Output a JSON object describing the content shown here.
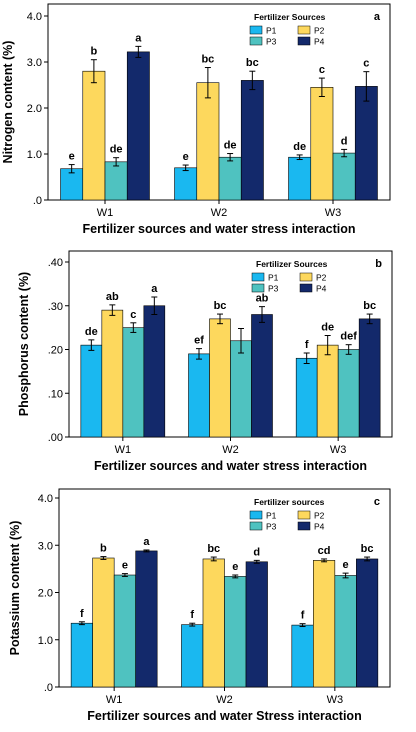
{
  "chart_data": [
    {
      "type": "bar",
      "panel_label": "a",
      "ylabel": "Nitrogen content (%)",
      "xlabel": "Fertilizer sources and water stress interaction",
      "categories": [
        "W1",
        "W2",
        "W3"
      ],
      "ylim": [
        0,
        4.0
      ],
      "yticks": [
        0,
        1.0,
        2.0,
        3.0,
        4.0
      ],
      "ytick_labels": [
        ".0",
        "1.0",
        "2.0",
        "3.0",
        "4.0"
      ],
      "legend_title": "Fertilizer Sources",
      "legend_position": "top-right",
      "series": [
        {
          "name": "P1",
          "color": "#1ab8f0",
          "values": [
            0.68,
            0.7,
            0.93
          ],
          "errors": [
            0.09,
            0.06,
            0.05
          ],
          "letters": [
            "e",
            "e",
            "de"
          ]
        },
        {
          "name": "P2",
          "color": "#fdd85d",
          "values": [
            2.8,
            2.55,
            2.45
          ],
          "errors": [
            0.25,
            0.33,
            0.2
          ],
          "letters": [
            "b",
            "bc",
            "c"
          ]
        },
        {
          "name": "P3",
          "color": "#4fc2c0",
          "values": [
            0.83,
            0.93,
            1.02
          ],
          "errors": [
            0.09,
            0.08,
            0.08
          ],
          "letters": [
            "de",
            "de",
            "d"
          ]
        },
        {
          "name": "P4",
          "color": "#13296b",
          "values": [
            3.22,
            2.6,
            2.47
          ],
          "errors": [
            0.12,
            0.2,
            0.32
          ],
          "letters": [
            "a",
            "bc",
            "c"
          ]
        }
      ]
    },
    {
      "type": "bar",
      "panel_label": "b",
      "ylabel": "Phosphorus content (%)",
      "xlabel": "Fertilizer sources and water stress interaction",
      "categories": [
        "W1",
        "W2",
        "W3"
      ],
      "ylim": [
        0,
        0.4
      ],
      "yticks": [
        0,
        0.1,
        0.2,
        0.3,
        0.4
      ],
      "ytick_labels": [
        ".00",
        ".10",
        ".20",
        ".30",
        ".40"
      ],
      "legend_title": "Fertilizer Sources",
      "legend_position": "top-right",
      "series": [
        {
          "name": "P1",
          "color": "#1ab8f0",
          "values": [
            0.21,
            0.19,
            0.18
          ],
          "errors": [
            0.012,
            0.012,
            0.012
          ],
          "letters": [
            "de",
            "ef",
            "f"
          ]
        },
        {
          "name": "P2",
          "color": "#fdd85d",
          "values": [
            0.29,
            0.27,
            0.21
          ],
          "errors": [
            0.012,
            0.011,
            0.022
          ],
          "letters": [
            "ab",
            "bc",
            "de"
          ]
        },
        {
          "name": "P3",
          "color": "#4fc2c0",
          "values": [
            0.25,
            0.22,
            0.2
          ],
          "errors": [
            0.011,
            0.028,
            0.011
          ],
          "letters": [
            "c",
            "",
            "def"
          ]
        },
        {
          "name": "P4",
          "color": "#13296b",
          "values": [
            0.3,
            0.28,
            0.27
          ],
          "errors": [
            0.02,
            0.018,
            0.011
          ],
          "letters": [
            "a",
            "ab",
            "bc"
          ]
        }
      ]
    },
    {
      "type": "bar",
      "panel_label": "c",
      "ylabel": "Potassium content (%)",
      "xlabel": "Fertilizer sources and water Stress interaction",
      "categories": [
        "W1",
        "W2",
        "W3"
      ],
      "ylim": [
        0,
        4.0
      ],
      "yticks": [
        0,
        1.0,
        2.0,
        3.0,
        4.0
      ],
      "ytick_labels": [
        ".0",
        "1.0",
        "2.0",
        "3.0",
        "4.0"
      ],
      "legend_title": "Fertilizer sources",
      "legend_position": "top-right",
      "series": [
        {
          "name": "P1",
          "color": "#1ab8f0",
          "values": [
            1.35,
            1.32,
            1.31
          ],
          "errors": [
            0.03,
            0.03,
            0.03
          ],
          "letters": [
            "f",
            "f",
            "f"
          ]
        },
        {
          "name": "P2",
          "color": "#fdd85d",
          "values": [
            2.73,
            2.71,
            2.68
          ],
          "errors": [
            0.03,
            0.04,
            0.03
          ],
          "letters": [
            "b",
            "bc",
            "cd"
          ]
        },
        {
          "name": "P3",
          "color": "#4fc2c0",
          "values": [
            2.37,
            2.34,
            2.36
          ],
          "errors": [
            0.03,
            0.03,
            0.05
          ],
          "letters": [
            "e",
            "e",
            "e"
          ]
        },
        {
          "name": "P4",
          "color": "#13296b",
          "values": [
            2.88,
            2.65,
            2.71
          ],
          "errors": [
            0.02,
            0.03,
            0.04
          ],
          "letters": [
            "a",
            "d",
            "bc"
          ]
        }
      ]
    }
  ]
}
